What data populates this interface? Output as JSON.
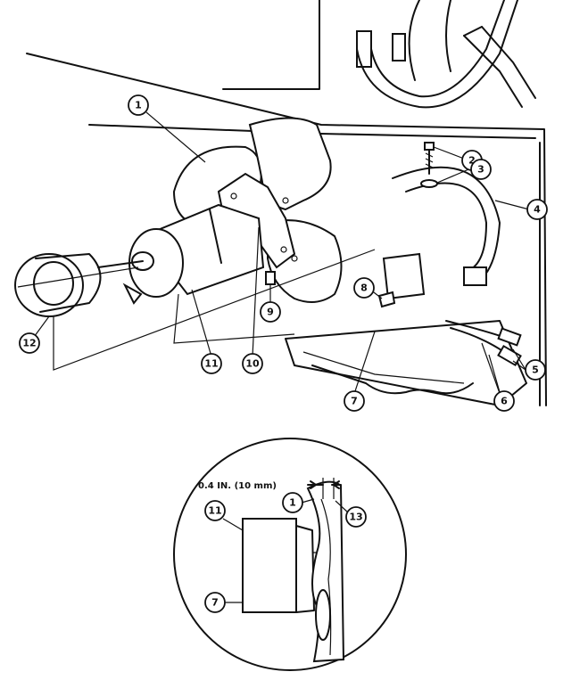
{
  "callouts": {
    "c1": "1",
    "c2": "2",
    "c3": "3",
    "c4": "4",
    "c5": "5",
    "c6": "6",
    "c7": "7",
    "c8": "8",
    "c9": "9",
    "c10": "10",
    "c11": "11",
    "c12": "12"
  },
  "detail": {
    "dimension": "0.4 IN. (10 mm)",
    "c1": "1",
    "c11": "11",
    "c7": "7",
    "c13": "13"
  }
}
